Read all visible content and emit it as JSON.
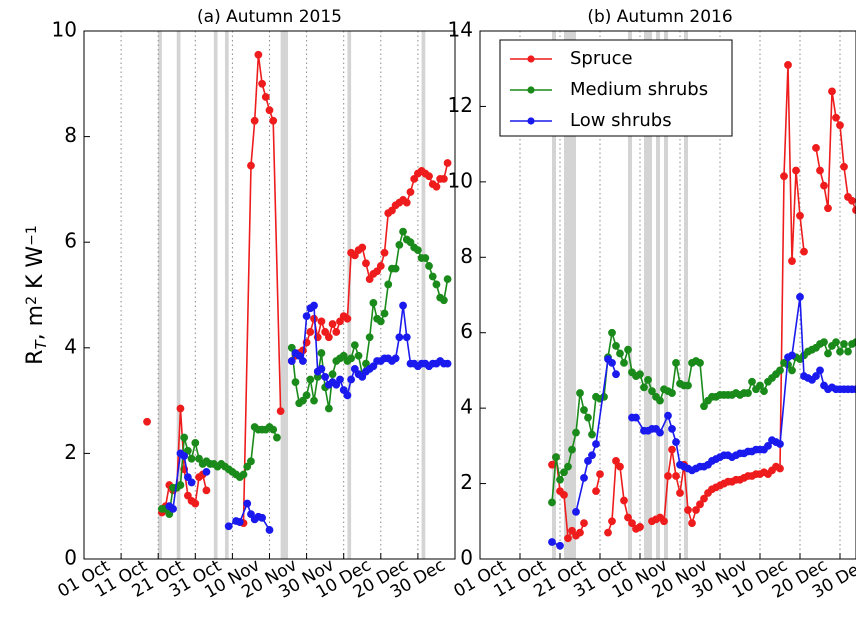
{
  "chart_data": [
    {
      "type": "line",
      "title": "(a) Autumn 2015",
      "ylabel": [
        "R",
        "T",
        ", m",
        "2",
        " K W",
        "−1"
      ],
      "ylabel_styles": [
        "normal",
        "sub",
        "normal",
        "sup",
        "normal",
        "sup"
      ],
      "xlim": [
        "01 Oct",
        "09 Jan"
      ],
      "xticks": [
        "01 Oct",
        "11 Oct",
        "21 Oct",
        "31 Oct",
        "10 Nov",
        "20 Nov",
        "30 Nov",
        "10 Dec",
        "20 Dec",
        "30 Dec"
      ],
      "ylim": [
        0,
        10
      ],
      "yticks": [
        0,
        2,
        4,
        6,
        8,
        10
      ],
      "grid": "x",
      "shaded": [
        [
          "21 Oct",
          "22 Oct"
        ],
        [
          "26 Oct",
          "27 Oct"
        ],
        [
          "05 Nov",
          "06 Nov"
        ],
        [
          "08 Nov",
          "09 Nov"
        ],
        [
          "23 Nov",
          "25 Nov"
        ],
        [
          "11 Dec",
          "12 Dec"
        ],
        [
          "31 Dec",
          "01 Jan"
        ]
      ],
      "series": [
        {
          "name": "Spruce",
          "color": "#ee1c1c",
          "x": [
            "18 Oct",
            "19 Oct",
            "22 Oct",
            "23 Oct",
            "24 Oct",
            "25 Oct",
            "26 Oct",
            "27 Oct",
            "28 Oct",
            "29 Oct",
            "30 Oct",
            "31 Oct",
            "01 Nov",
            "02 Nov",
            "03 Nov",
            "07 Nov",
            "12 Nov",
            "13 Nov",
            "15 Nov",
            "16 Nov",
            "17 Nov",
            "18 Nov",
            "19 Nov",
            "20 Nov",
            "21 Nov",
            "23 Nov",
            "24 Nov",
            "26 Nov",
            "27 Nov",
            "28 Nov",
            "29 Nov",
            "30 Nov",
            "01 Dec",
            "02 Dec",
            "03 Dec",
            "04 Dec",
            "05 Dec",
            "06 Dec",
            "07 Dec",
            "08 Dec",
            "09 Dec",
            "10 Dec",
            "11 Dec",
            "12 Dec",
            "13 Dec",
            "14 Dec",
            "15 Dec",
            "16 Dec",
            "17 Dec",
            "18 Dec",
            "19 Dec",
            "20 Dec",
            "21 Dec",
            "22 Dec",
            "23 Dec",
            "24 Dec",
            "25 Dec",
            "26 Dec",
            "27 Dec",
            "28 Dec",
            "29 Dec",
            "30 Dec",
            "31 Dec",
            "01 Jan",
            "02 Jan",
            "03 Jan",
            "04 Jan",
            "05 Jan",
            "06 Jan",
            "07 Jan"
          ],
          "values": [
            2.6,
            null,
            0.88,
            1.0,
            1.4,
            1.3,
            1.35,
            2.85,
            1.7,
            1.2,
            1.1,
            1.05,
            1.55,
            1.6,
            1.3,
            null,
            0.7,
            0.68,
            7.45,
            8.3,
            9.55,
            9.0,
            8.75,
            8.5,
            8.3,
            2.8,
            null,
            3.75,
            3.85,
            3.9,
            3.95,
            4.1,
            4.3,
            4.55,
            4.2,
            4.5,
            4.3,
            4.2,
            4.45,
            4.3,
            4.5,
            4.6,
            4.55,
            5.8,
            5.75,
            5.85,
            5.9,
            5.6,
            5.3,
            5.4,
            5.45,
            5.55,
            5.8,
            6.55,
            6.6,
            6.7,
            6.75,
            6.8,
            6.75,
            6.95,
            7.2,
            7.3,
            7.35,
            7.3,
            7.25,
            7.1,
            7.05,
            7.2,
            7.2,
            7.5
          ]
        },
        {
          "name": "Medium shrubs",
          "color": "#1a8a1a",
          "x": [
            "22 Oct",
            "23 Oct",
            "24 Oct",
            "25 Oct",
            "26 Oct",
            "27 Oct",
            "28 Oct",
            "29 Oct",
            "30 Oct",
            "31 Oct",
            "01 Nov",
            "02 Nov",
            "03 Nov",
            "04 Nov",
            "05 Nov",
            "06 Nov",
            "07 Nov",
            "08 Nov",
            "09 Nov",
            "10 Nov",
            "11 Nov",
            "12 Nov",
            "13 Nov",
            "14 Nov",
            "15 Nov",
            "16 Nov",
            "17 Nov",
            "18 Nov",
            "19 Nov",
            "20 Nov",
            "21 Nov",
            "22 Nov",
            "24 Nov",
            "26 Nov",
            "27 Nov",
            "28 Nov",
            "29 Nov",
            "30 Nov",
            "01 Dec",
            "02 Dec",
            "03 Dec",
            "04 Dec",
            "05 Dec",
            "06 Dec",
            "07 Dec",
            "08 Dec",
            "09 Dec",
            "10 Dec",
            "11 Dec",
            "12 Dec",
            "13 Dec",
            "14 Dec",
            "15 Dec",
            "16 Dec",
            "17 Dec",
            "18 Dec",
            "19 Dec",
            "20 Dec",
            "21 Dec",
            "22 Dec",
            "23 Dec",
            "24 Dec",
            "25 Dec",
            "26 Dec",
            "27 Dec",
            "28 Dec",
            "29 Dec",
            "30 Dec",
            "31 Dec",
            "01 Jan",
            "02 Jan",
            "03 Jan",
            "04 Jan",
            "05 Jan",
            "06 Jan",
            "07 Jan"
          ],
          "values": [
            0.95,
            0.95,
            0.85,
            1.35,
            1.35,
            1.4,
            2.3,
            2.05,
            1.9,
            2.2,
            1.9,
            1.8,
            1.85,
            1.8,
            1.8,
            1.75,
            1.8,
            1.75,
            1.7,
            1.65,
            1.6,
            1.55,
            1.6,
            1.75,
            1.85,
            2.5,
            2.45,
            2.45,
            2.45,
            2.5,
            2.45,
            2.3,
            null,
            4.0,
            3.35,
            2.95,
            3.0,
            3.1,
            3.4,
            3.0,
            3.45,
            3.9,
            3.25,
            2.85,
            3.5,
            3.75,
            3.8,
            3.85,
            3.75,
            3.8,
            4.05,
            3.85,
            3.5,
            3.7,
            4.2,
            4.85,
            4.55,
            4.5,
            4.65,
            5.2,
            5.5,
            5.5,
            5.95,
            6.2,
            6.05,
            6.0,
            5.9,
            5.85,
            5.7,
            5.7,
            5.55,
            5.35,
            5.2,
            4.95,
            4.9,
            5.3
          ]
        },
        {
          "name": "Low shrubs",
          "color": "#1a1aee",
          "x": [
            "24 Oct",
            "25 Oct",
            "27 Oct",
            "28 Oct",
            "29 Oct",
            "30 Oct",
            "01 Nov",
            "03 Nov",
            "06 Nov",
            "09 Nov",
            "11 Nov",
            "12 Nov",
            "14 Nov",
            "15 Nov",
            "16 Nov",
            "17 Nov",
            "18 Nov",
            "20 Nov",
            "24 Nov",
            "26 Nov",
            "27 Nov",
            "28 Nov",
            "29 Nov",
            "30 Nov",
            "01 Dec",
            "02 Dec",
            "03 Dec",
            "04 Dec",
            "05 Dec",
            "06 Dec",
            "07 Dec",
            "08 Dec",
            "09 Dec",
            "10 Dec",
            "11 Dec",
            "12 Dec",
            "13 Dec",
            "14 Dec",
            "15 Dec",
            "16 Dec",
            "17 Dec",
            "18 Dec",
            "19 Dec",
            "20 Dec",
            "21 Dec",
            "22 Dec",
            "23 Dec",
            "24 Dec",
            "25 Dec",
            "26 Dec",
            "27 Dec",
            "28 Dec",
            "29 Dec",
            "30 Dec",
            "31 Dec",
            "01 Jan",
            "02 Jan",
            "03 Jan",
            "04 Jan",
            "05 Jan",
            "06 Jan",
            "07 Jan"
          ],
          "values": [
            1.0,
            0.95,
            2.0,
            1.95,
            1.55,
            1.45,
            null,
            1.65,
            null,
            0.62,
            0.72,
            0.7,
            1.05,
            0.85,
            0.75,
            0.8,
            0.78,
            0.55,
            null,
            3.75,
            3.9,
            3.85,
            3.75,
            4.6,
            4.75,
            4.8,
            3.55,
            3.6,
            3.45,
            3.3,
            3.35,
            3.3,
            3.4,
            3.2,
            3.1,
            3.4,
            3.6,
            3.5,
            3.45,
            3.55,
            3.6,
            3.65,
            3.75,
            3.75,
            3.8,
            3.8,
            3.75,
            3.8,
            4.2,
            4.8,
            4.2,
            3.7,
            3.7,
            3.65,
            3.7,
            3.7,
            3.65,
            3.7,
            3.7,
            3.75,
            3.7,
            3.7
          ]
        }
      ]
    },
    {
      "type": "line",
      "title": "(b) Autumn 2016",
      "xlim": [
        "01 Oct",
        "03 Jan"
      ],
      "xticks": [
        "01 Oct",
        "11 Oct",
        "21 Oct",
        "31 Oct",
        "10 Nov",
        "20 Nov",
        "30 Nov",
        "10 Dec",
        "20 Dec",
        "30 Dec"
      ],
      "ylim": [
        0,
        14
      ],
      "yticks": [
        0,
        2,
        4,
        6,
        8,
        10,
        12,
        14
      ],
      "grid": "x",
      "legend": "upper left",
      "shaded": [
        [
          "19 Oct",
          "20 Oct"
        ],
        [
          "22 Oct",
          "25 Oct"
        ],
        [
          "07 Nov",
          "08 Nov"
        ],
        [
          "11 Nov",
          "13 Nov"
        ],
        [
          "14 Nov",
          "15 Nov"
        ],
        [
          "16 Nov",
          "17 Nov"
        ],
        [
          "21 Nov",
          "22 Nov"
        ]
      ],
      "series": [
        {
          "name": "Spruce",
          "color": "#ee1c1c",
          "x": [
            "19 Oct",
            "20 Oct",
            "21 Oct",
            "22 Oct",
            "23 Oct",
            "24 Oct",
            "25 Oct",
            "26 Oct",
            "27 Oct",
            "28 Oct",
            "30 Oct",
            "31 Oct",
            "01 Nov",
            "02 Nov",
            "03 Nov",
            "04 Nov",
            "05 Nov",
            "06 Nov",
            "07 Nov",
            "08 Nov",
            "09 Nov",
            "10 Nov",
            "11 Nov",
            "13 Nov",
            "14 Nov",
            "15 Nov",
            "16 Nov",
            "17 Nov",
            "18 Nov",
            "19 Nov",
            "20 Nov",
            "21 Nov",
            "22 Nov",
            "23 Nov",
            "24 Nov",
            "25 Nov",
            "26 Nov",
            "27 Nov",
            "28 Nov",
            "29 Nov",
            "30 Nov",
            "01 Dec",
            "02 Dec",
            "03 Dec",
            "04 Dec",
            "05 Dec",
            "06 Dec",
            "07 Dec",
            "08 Dec",
            "09 Dec",
            "10 Dec",
            "11 Dec",
            "12 Dec",
            "13 Dec",
            "14 Dec",
            "15 Dec",
            "16 Dec",
            "17 Dec",
            "18 Dec",
            "19 Dec",
            "20 Dec",
            "21 Dec",
            "22 Dec",
            "24 Dec",
            "25 Dec",
            "26 Dec",
            "27 Dec",
            "28 Dec",
            "29 Dec",
            "30 Dec",
            "31 Dec",
            "01 Jan",
            "02 Jan",
            "03 Jan"
          ],
          "values": [
            2.5,
            2.7,
            1.8,
            1.7,
            0.55,
            0.75,
            0.62,
            0.7,
            0.95,
            null,
            1.8,
            2.25,
            null,
            0.7,
            1.0,
            2.6,
            2.45,
            1.55,
            1.1,
            0.95,
            0.8,
            0.85,
            null,
            1.0,
            1.05,
            1.1,
            1.0,
            2.2,
            2.9,
            2.2,
            1.75,
            2.5,
            1.3,
            0.95,
            1.3,
            1.45,
            1.6,
            1.75,
            1.85,
            1.9,
            1.95,
            2.0,
            2.05,
            2.05,
            2.1,
            2.1,
            2.15,
            2.2,
            2.2,
            2.25,
            2.25,
            2.3,
            2.25,
            2.35,
            2.45,
            2.4,
            10.15,
            13.1,
            7.9,
            10.3,
            9.1,
            8.15,
            null,
            10.9,
            10.3,
            9.9,
            9.3,
            12.4,
            11.7,
            11.5,
            10.4,
            9.6,
            9.5,
            9.25
          ]
        },
        {
          "name": "Medium shrubs",
          "color": "#1a8a1a",
          "x": [
            "19 Oct",
            "20 Oct",
            "21 Oct",
            "22 Oct",
            "23 Oct",
            "24 Oct",
            "25 Oct",
            "26 Oct",
            "27 Oct",
            "28 Oct",
            "29 Oct",
            "30 Oct",
            "31 Oct",
            "01 Nov",
            "02 Nov",
            "03 Nov",
            "04 Nov",
            "05 Nov",
            "06 Nov",
            "07 Nov",
            "08 Nov",
            "09 Nov",
            "10 Nov",
            "11 Nov",
            "12 Nov",
            "13 Nov",
            "14 Nov",
            "15 Nov",
            "16 Nov",
            "17 Nov",
            "18 Nov",
            "19 Nov",
            "20 Nov",
            "21 Nov",
            "22 Nov",
            "23 Nov",
            "24 Nov",
            "25 Nov",
            "26 Nov",
            "27 Nov",
            "28 Nov",
            "29 Nov",
            "30 Nov",
            "01 Dec",
            "02 Dec",
            "03 Dec",
            "04 Dec",
            "05 Dec",
            "06 Dec",
            "07 Dec",
            "08 Dec",
            "09 Dec",
            "10 Dec",
            "11 Dec",
            "12 Dec",
            "13 Dec",
            "14 Dec",
            "15 Dec",
            "16 Dec",
            "17 Dec",
            "18 Dec",
            "19 Dec",
            "20 Dec",
            "21 Dec",
            "22 Dec",
            "23 Dec",
            "24 Dec",
            "25 Dec",
            "26 Dec",
            "27 Dec",
            "28 Dec",
            "29 Dec",
            "30 Dec",
            "31 Dec",
            "01 Jan",
            "02 Jan",
            "03 Jan"
          ],
          "values": [
            1.5,
            2.7,
            2.1,
            2.3,
            2.45,
            2.9,
            3.35,
            4.4,
            3.95,
            3.75,
            3.3,
            4.3,
            4.25,
            4.3,
            5.35,
            6.0,
            5.65,
            5.45,
            5.2,
            5.55,
            4.95,
            4.85,
            4.9,
            4.55,
            4.75,
            4.45,
            4.3,
            4.2,
            4.5,
            4.45,
            4.4,
            5.2,
            4.65,
            4.6,
            4.6,
            5.2,
            5.25,
            5.2,
            4.05,
            4.2,
            4.3,
            4.3,
            4.35,
            4.35,
            4.35,
            4.35,
            4.4,
            4.35,
            4.4,
            4.4,
            4.7,
            4.5,
            4.6,
            4.45,
            4.7,
            4.8,
            4.9,
            5.0,
            5.2,
            5.15,
            5.0,
            5.35,
            5.3,
            5.4,
            5.5,
            5.55,
            5.6,
            5.7,
            5.75,
            5.45,
            5.65,
            5.75,
            5.5,
            5.7,
            5.5,
            5.7,
            5.75
          ]
        },
        {
          "name": "Low shrubs",
          "color": "#1a1aee",
          "x": [
            "19 Oct",
            "21 Oct",
            "23 Oct",
            "25 Oct",
            "27 Oct",
            "28 Oct",
            "29 Oct",
            "30 Oct",
            "02 Nov",
            "03 Nov",
            "04 Nov",
            "06 Nov",
            "08 Nov",
            "09 Nov",
            "11 Nov",
            "12 Nov",
            "13 Nov",
            "14 Nov",
            "15 Nov",
            "17 Nov",
            "18 Nov",
            "19 Nov",
            "20 Nov",
            "21 Nov",
            "22 Nov",
            "23 Nov",
            "24 Nov",
            "25 Nov",
            "26 Nov",
            "27 Nov",
            "28 Nov",
            "29 Nov",
            "30 Nov",
            "01 Dec",
            "02 Dec",
            "03 Dec",
            "04 Dec",
            "05 Dec",
            "06 Dec",
            "07 Dec",
            "08 Dec",
            "09 Dec",
            "10 Dec",
            "11 Dec",
            "12 Dec",
            "13 Dec",
            "14 Dec",
            "15 Dec",
            "17 Dec",
            "18 Dec",
            "20 Dec",
            "21 Dec",
            "22 Dec",
            "23 Dec",
            "24 Dec",
            "25 Dec",
            "26 Dec",
            "27 Dec",
            "28 Dec",
            "29 Dec",
            "30 Dec",
            "31 Dec",
            "01 Jan",
            "02 Jan",
            "03 Jan"
          ],
          "values": [
            0.45,
            0.35,
            null,
            1.25,
            2.15,
            2.6,
            2.75,
            3.05,
            5.3,
            5.2,
            4.9,
            null,
            3.75,
            3.75,
            3.4,
            3.4,
            3.45,
            3.45,
            3.35,
            3.8,
            3.45,
            3.1,
            2.5,
            2.45,
            2.4,
            2.35,
            2.4,
            2.45,
            2.45,
            2.5,
            2.6,
            2.65,
            2.7,
            2.75,
            2.75,
            2.7,
            2.75,
            2.8,
            2.8,
            2.85,
            2.85,
            2.9,
            2.9,
            2.9,
            3.0,
            3.15,
            3.1,
            3.05,
            5.35,
            5.4,
            6.95,
            4.85,
            4.8,
            4.75,
            4.85,
            5.0,
            4.6,
            4.5,
            4.55,
            4.5,
            4.5,
            4.5,
            4.5,
            4.5,
            4.5
          ]
        }
      ]
    }
  ]
}
